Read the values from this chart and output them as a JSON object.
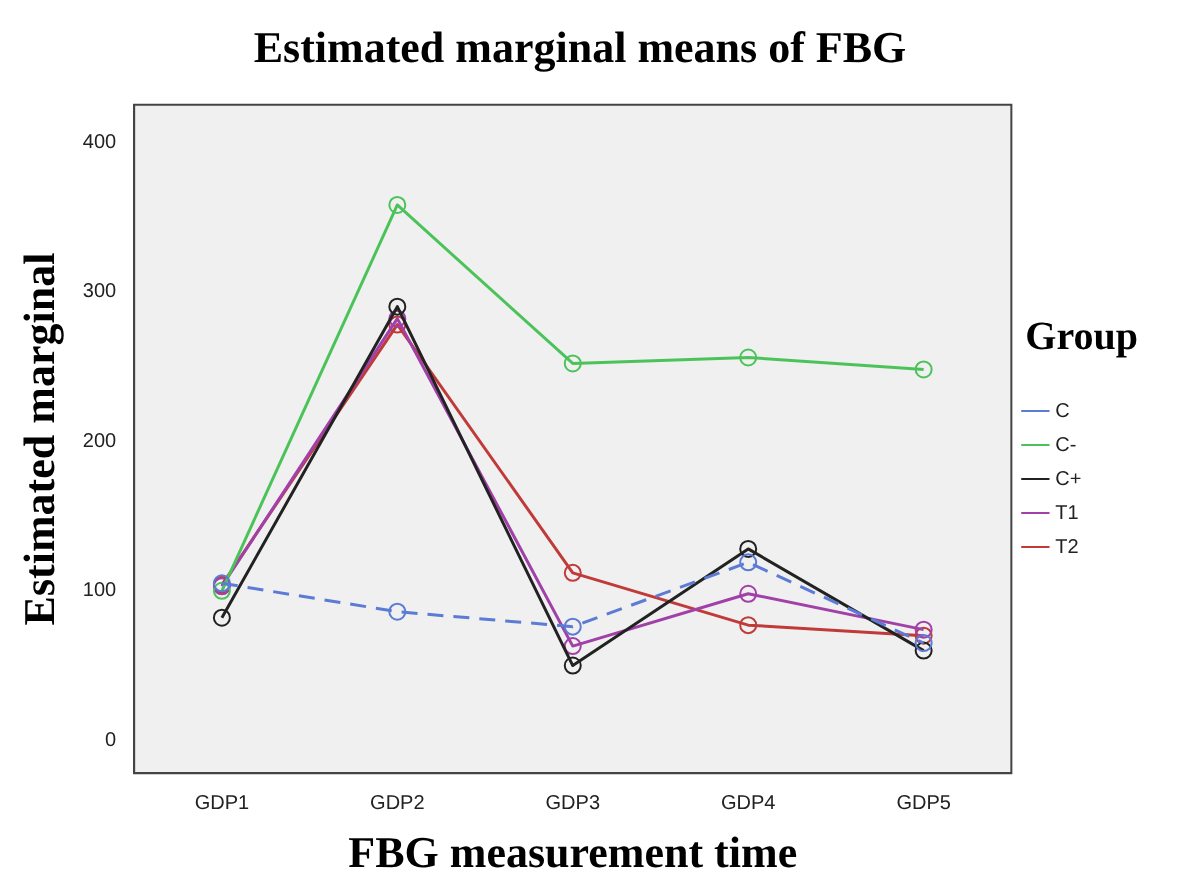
{
  "chart_data": {
    "type": "line",
    "title": "Estimated marginal means of FBG",
    "xlabel": "FBG measurement time",
    "ylabel": "Estimated marginal",
    "legend_title": "Group",
    "legend": "right",
    "marker": "circle",
    "grid": false,
    "categories": [
      "GDP1",
      "GDP2",
      "GDP3",
      "GDP4",
      "GDP5"
    ],
    "ylim": [
      -22,
      425
    ],
    "yticks": [
      0,
      100,
      200,
      300,
      400
    ],
    "series": [
      {
        "name": "C",
        "color": "#5b7bd5",
        "line_style": "dashed",
        "values": [
          105,
          86,
          76,
          119,
          65
        ]
      },
      {
        "name": "C-",
        "color": "#4cc35a",
        "values": [
          100,
          358,
          252,
          256,
          248
        ]
      },
      {
        "name": "C+",
        "color": "#222222",
        "values": [
          82,
          290,
          50,
          128,
          60
        ]
      },
      {
        "name": "T1",
        "color": "#a040a8",
        "values": [
          103,
          282,
          63,
          98,
          74
        ]
      },
      {
        "name": "T2",
        "color": "#c03a3a",
        "values": [
          104,
          278,
          112,
          77,
          70
        ]
      }
    ]
  }
}
